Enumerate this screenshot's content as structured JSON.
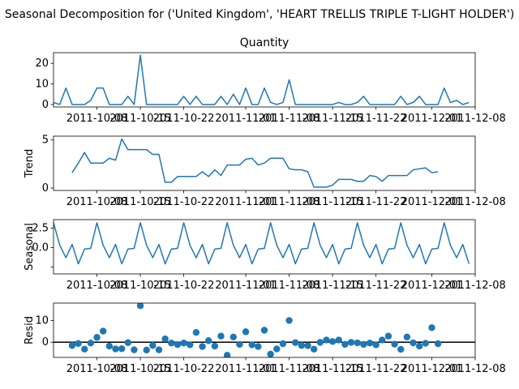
{
  "figure": {
    "suptitle": "Seasonal Decomposition for ('United Kingdom', 'HEART TRELLIS TRIPLE T-LIGHT HOLDER')"
  },
  "colors": {
    "line": "#1f77b4",
    "axis": "#000000",
    "background": "#ffffff"
  },
  "chart_data": [
    {
      "type": "line",
      "title": "Quantity",
      "xlabel": "",
      "ylabel": "",
      "x_range": [
        "2011-10-01",
        "2011-12-08"
      ],
      "x_ticks": [
        "2011-10-08",
        "2011-10-15",
        "2011-10-22",
        "2011-11-01",
        "2011-11-08",
        "2011-11-15",
        "2011-11-22",
        "2011-12-01",
        "2011-12-08"
      ],
      "x_tick_labels": [
        "2011-10-08",
        "2011-10-15",
        "2011-10-22",
        "2011-11-01",
        "2011-11-08",
        "2011-11-15",
        "2011-11-22",
        "2011-12-01",
        "2011-12-08"
      ],
      "yticks": [
        0,
        10,
        20
      ],
      "ylim": [
        -1.2,
        25.2
      ],
      "x_start": "2011-10-01",
      "values": [
        1,
        0,
        8,
        0,
        0,
        0,
        2,
        8,
        8,
        0,
        0,
        0,
        4,
        0,
        24,
        0,
        0,
        0,
        0,
        0,
        0,
        4,
        0,
        4,
        0,
        0,
        0,
        4,
        0,
        5,
        0,
        8,
        0,
        0,
        8,
        1,
        0,
        1,
        12,
        0,
        0,
        0,
        0,
        0,
        0,
        0,
        1,
        0,
        0,
        1,
        4,
        0,
        0,
        0,
        0,
        0,
        4,
        0,
        1,
        4,
        0,
        0,
        0,
        8,
        1,
        2,
        0,
        1
      ]
    },
    {
      "type": "line",
      "title": "",
      "xlabel": "",
      "ylabel": "Trend",
      "x_range": [
        "2011-10-01",
        "2011-12-08"
      ],
      "x_ticks": [
        "2011-10-08",
        "2011-10-15",
        "2011-10-22",
        "2011-11-01",
        "2011-11-08",
        "2011-11-15",
        "2011-11-22",
        "2011-12-01",
        "2011-12-08"
      ],
      "x_tick_labels": [
        "2011-10-08",
        "2011-10-15",
        "2011-10-22",
        "2011-11-01",
        "2011-11-08",
        "2011-11-15",
        "2011-11-22",
        "2011-12-01",
        "2011-12-08"
      ],
      "yticks": [
        0,
        5
      ],
      "ylim": [
        -0.25,
        5.4
      ],
      "x_start": "2011-10-01",
      "values": [
        null,
        null,
        null,
        1.6,
        2.6,
        3.7,
        2.6,
        2.6,
        2.6,
        3.1,
        2.9,
        5.1,
        4.0,
        4.0,
        4.0,
        4.0,
        3.5,
        3.5,
        0.6,
        0.6,
        1.2,
        1.2,
        1.2,
        1.2,
        1.7,
        1.2,
        1.9,
        1.3,
        2.4,
        2.4,
        2.4,
        3.0,
        3.1,
        2.4,
        2.6,
        3.1,
        3.1,
        3.1,
        2.0,
        1.9,
        1.9,
        1.7,
        0.1,
        0.1,
        0.1,
        0.3,
        0.9,
        0.9,
        0.9,
        0.7,
        0.7,
        1.3,
        1.2,
        0.7,
        1.3,
        1.3,
        1.3,
        1.3,
        1.9,
        2.0,
        2.1,
        1.6,
        1.7,
        null,
        null,
        null,
        null,
        null
      ]
    },
    {
      "type": "line",
      "title": "",
      "xlabel": "",
      "ylabel": "Seasonal",
      "x_range": [
        "2011-10-01",
        "2011-12-08"
      ],
      "x_ticks": [
        "2011-10-08",
        "2011-10-15",
        "2011-10-22",
        "2011-11-01",
        "2011-11-08",
        "2011-11-15",
        "2011-11-22",
        "2011-12-01",
        "2011-12-08"
      ],
      "x_tick_labels": [
        "2011-10-08",
        "2011-10-15",
        "2011-10-22",
        "2011-11-01",
        "2011-11-08",
        "2011-11-15",
        "2011-11-22",
        "2011-12-01",
        "2011-12-08"
      ],
      "yticks": [
        -2.5,
        0.0,
        2.5
      ],
      "ytick_labels": [
        "",
        "0.0",
        "2.5"
      ],
      "ylim": [
        -3.4,
        3.6
      ],
      "x_start": "2011-10-01",
      "values": [
        3.2,
        0.3,
        -1.3,
        0.4,
        -2.1,
        -0.2,
        -0.1,
        3.2,
        0.3,
        -1.3,
        0.4,
        -2.1,
        -0.2,
        -0.1,
        3.2,
        0.3,
        -1.3,
        0.4,
        -2.1,
        -0.2,
        -0.1,
        3.2,
        0.3,
        -1.3,
        0.4,
        -2.1,
        -0.2,
        -0.1,
        3.2,
        0.3,
        -1.3,
        0.4,
        -2.1,
        -0.2,
        -0.1,
        3.2,
        0.3,
        -1.3,
        0.4,
        -2.1,
        -0.2,
        -0.1,
        3.2,
        0.3,
        -1.3,
        0.4,
        -2.1,
        -0.2,
        -0.1,
        3.2,
        0.3,
        -1.3,
        0.4,
        -2.1,
        -0.2,
        -0.1,
        3.2,
        0.3,
        -1.3,
        0.4,
        -2.1,
        -0.2,
        -0.1,
        3.2,
        0.3,
        -1.3,
        0.4,
        -2.1
      ]
    },
    {
      "type": "scatter",
      "title": "",
      "xlabel": "",
      "ylabel": "Resid",
      "x_range": [
        "2011-10-01",
        "2011-12-08"
      ],
      "x_ticks": [
        "2011-10-08",
        "2011-10-15",
        "2011-10-22",
        "2011-11-01",
        "2011-11-08",
        "2011-11-15",
        "2011-11-22",
        "2011-12-01",
        "2011-12-08"
      ],
      "x_tick_labels": [
        "2011-10-08",
        "2011-10-15",
        "2011-10-22",
        "2011-11-01",
        "2011-11-08",
        "2011-11-15",
        "2011-11-22",
        "2011-12-01",
        "2011-12-08"
      ],
      "yticks": [
        0,
        10
      ],
      "ylim": [
        -7,
        18
      ],
      "baseline": 0,
      "x_start": "2011-10-01",
      "values": [
        null,
        null,
        null,
        -1.5,
        -0.6,
        -3.2,
        -0.4,
        2.2,
        5.1,
        -1.8,
        -3.1,
        -3.0,
        -0.2,
        -3.5,
        16.8,
        -3.6,
        -1.5,
        -3.5,
        1.5,
        -0.4,
        -1.1,
        -0.4,
        -1.2,
        4.5,
        -2.0,
        0.7,
        -1.8,
        2.8,
        -6.0,
        2.4,
        -1.0,
        4.8,
        -1.2,
        -2.0,
        5.5,
        -5.5,
        -3.1,
        -0.7,
        10.0,
        -0.2,
        -1.5,
        -1.6,
        -3.2,
        -0.1,
        1.0,
        0.3,
        1.0,
        -1.0,
        -0.1,
        -0.3,
        -1.0,
        -0.4,
        -1.2,
        1.0,
        2.8,
        -0.9,
        -3.3,
        2.4,
        -0.3,
        -1.8,
        -0.5,
        6.7,
        -0.7,
        null,
        null,
        null,
        null,
        null
      ]
    }
  ]
}
